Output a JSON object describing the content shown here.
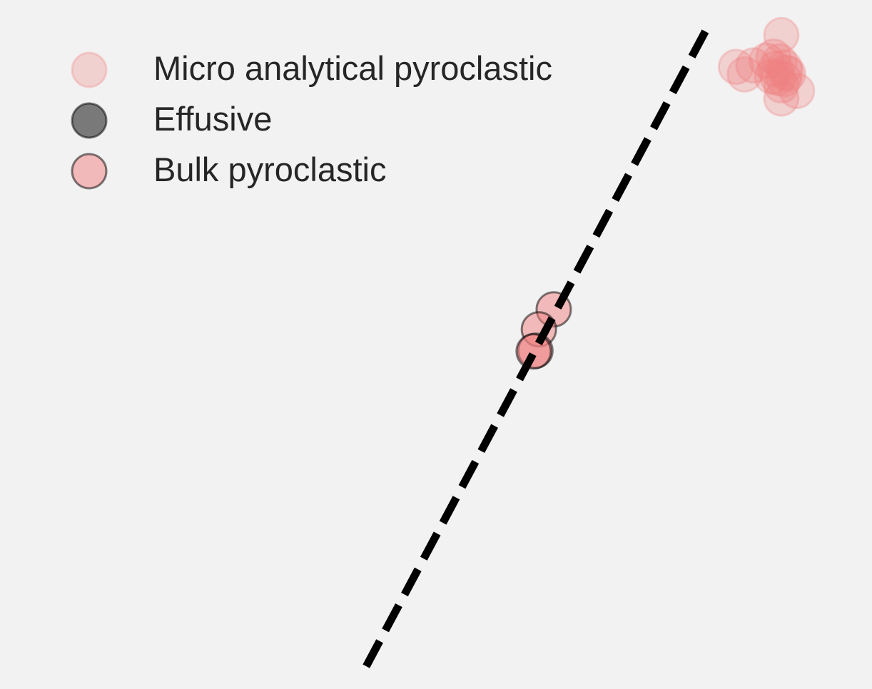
{
  "chart_data": {
    "type": "scatter",
    "title": "",
    "xlabel": "",
    "ylabel": "",
    "xlim": [
      0,
      100
    ],
    "ylim": [
      0,
      100
    ],
    "grid": false,
    "legend_position": "top-left",
    "legend": [
      {
        "label": "Micro analytical pyroclastic",
        "marker_color": "#f08080",
        "edge_color": "#f08080",
        "alpha": 0.3
      },
      {
        "label": "Effusive",
        "marker_color": "#000000",
        "edge_color": "#000000",
        "alpha": 0.5
      },
      {
        "label": "Bulk pyroclastic",
        "marker_color": "#f08080",
        "edge_color": "#000000",
        "alpha": 0.5
      }
    ],
    "reference_line": {
      "style": "dashed",
      "color": "#000000",
      "x": [
        42,
        81.5
      ],
      "y": [
        3.3,
        96.9
      ]
    },
    "series": [
      {
        "name": "Micro analytical pyroclastic",
        "color": "#f08080",
        "edge_color": "#f08080",
        "alpha": 0.3,
        "points": [
          {
            "x": 89.6,
            "y": 94.9
          },
          {
            "x": 84.4,
            "y": 90.3
          },
          {
            "x": 85.4,
            "y": 89.2
          },
          {
            "x": 86.4,
            "y": 90.5
          },
          {
            "x": 87.9,
            "y": 91.2
          },
          {
            "x": 88.7,
            "y": 91.8
          },
          {
            "x": 89.4,
            "y": 91.1
          },
          {
            "x": 90.0,
            "y": 90.2
          },
          {
            "x": 90.4,
            "y": 89.3
          },
          {
            "x": 89.9,
            "y": 88.5
          },
          {
            "x": 89.2,
            "y": 88.7
          },
          {
            "x": 88.5,
            "y": 88.9
          },
          {
            "x": 89.6,
            "y": 87.6
          },
          {
            "x": 91.4,
            "y": 86.8
          },
          {
            "x": 89.6,
            "y": 85.7
          },
          {
            "x": 88.9,
            "y": 90.0
          },
          {
            "x": 90.1,
            "y": 89.5
          }
        ]
      },
      {
        "name": "Effusive",
        "color": "#000000",
        "edge_color": "#000000",
        "alpha": 0.5,
        "points": []
      },
      {
        "name": "Bulk pyroclastic",
        "color": "#f08080",
        "edge_color": "#000000",
        "alpha": 0.5,
        "points": [
          {
            "x": 63.5,
            "y": 55.1
          },
          {
            "x": 61.8,
            "y": 52.2
          },
          {
            "x": 61.4,
            "y": 49.1
          },
          {
            "x": 61.2,
            "y": 49.0
          }
        ]
      }
    ]
  }
}
